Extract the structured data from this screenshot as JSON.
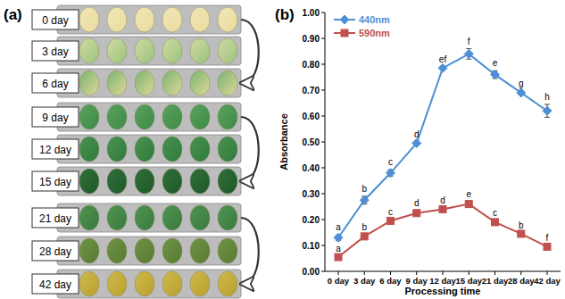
{
  "panel_a": {
    "label": "(a)",
    "rows": [
      "0 day",
      "3 day",
      "6 day",
      "9 day",
      "12 day",
      "15 day",
      "21 day",
      "28 day",
      "42 day"
    ]
  },
  "chart_data": {
    "type": "line",
    "title": "(b)",
    "x_label": "Processing time",
    "y_label": "Absorbance",
    "categories": [
      "0 day",
      "3 day",
      "6 day",
      "9 day",
      "12 day",
      "15 day",
      "21 day",
      "28 day",
      "42 day"
    ],
    "ylim": [
      0,
      1
    ],
    "yticks": [
      {
        "value": 0,
        "label": "0.00"
      },
      {
        "value": 0.1,
        "label": "0.10"
      },
      {
        "value": 0.2,
        "label": "0.20"
      },
      {
        "value": 0.3,
        "label": "0.30"
      },
      {
        "value": 0.4,
        "label": "0.40"
      },
      {
        "value": 0.5,
        "label": "0.50"
      },
      {
        "value": 0.6,
        "label": "0.60"
      },
      {
        "value": 0.7,
        "label": "0.70"
      },
      {
        "value": 0.8,
        "label": "0.80"
      },
      {
        "value": 0.9,
        "label": "0.90"
      },
      {
        "value": 1,
        "label": "1.00"
      }
    ],
    "grid": false,
    "legend": "upper left",
    "series": [
      {
        "name": "440nm",
        "color": "#4f8fd6",
        "marker": "diamond",
        "values": [
          0.13,
          0.275,
          0.38,
          0.495,
          0.785,
          0.84,
          0.76,
          0.69,
          0.62
        ],
        "errors": [
          0.01,
          0.015,
          0.012,
          0.005,
          0.005,
          0.02,
          0.015,
          0.005,
          0.025
        ],
        "significance": [
          "a",
          "b",
          "c",
          "d",
          "ef",
          "f",
          "e",
          "g",
          "h"
        ]
      },
      {
        "name": "590nm",
        "color": "#c0504d",
        "marker": "square",
        "values": [
          0.055,
          0.135,
          0.195,
          0.225,
          0.24,
          0.26,
          0.19,
          0.145,
          0.095
        ],
        "errors": [
          0.005,
          0.008,
          0.005,
          0.01,
          0.005,
          0.008,
          0.008,
          0.005,
          0.005
        ],
        "significance": [
          "a",
          "b",
          "c",
          "d",
          "d",
          "e",
          "c",
          "b",
          "f"
        ]
      }
    ]
  }
}
